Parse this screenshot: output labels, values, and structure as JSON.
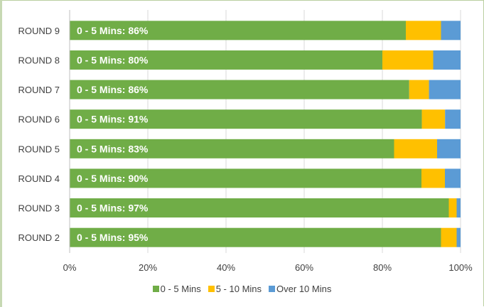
{
  "chart_data": {
    "type": "bar",
    "orientation": "horizontal",
    "stacked": "percent",
    "categories": [
      "ROUND 9",
      "ROUND 8",
      "ROUND 7",
      "ROUND 6",
      "ROUND 5",
      "ROUND 4",
      "ROUND 3",
      "ROUND 2"
    ],
    "series": [
      {
        "name": "0 - 5 Mins",
        "color": "#70ad47",
        "values": [
          86,
          80,
          86,
          91,
          83,
          90,
          97,
          95
        ]
      },
      {
        "name": "5 - 10 Mins",
        "color": "#ffc000",
        "values": [
          9,
          13,
          5,
          6,
          11,
          6,
          2,
          4
        ]
      },
      {
        "name": "Over 10 Mins",
        "color": "#5b9bd5",
        "values": [
          5,
          7,
          8,
          4,
          6,
          4,
          1,
          1
        ]
      }
    ],
    "data_labels": [
      "0 - 5 Mins: 86%",
      "0 - 5 Mins: 80%",
      "0 - 5 Mins: 86%",
      "0 - 5 Mins: 91%",
      "0 - 5 Mins: 83%",
      "0 - 5 Mins: 90%",
      "0 - 5 Mins: 97%",
      "0 - 5 Mins: 95%"
    ],
    "xticks": [
      "0%",
      "20%",
      "40%",
      "60%",
      "80%",
      "100%"
    ],
    "xlim": [
      0,
      100
    ],
    "gridlines": true,
    "legend_position": "bottom"
  }
}
